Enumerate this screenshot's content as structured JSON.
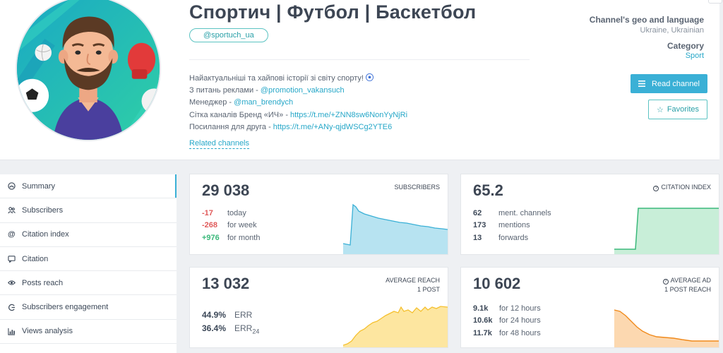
{
  "channel": {
    "title": "Спортич | Футбол | Баскетбол",
    "handle": "@sportuch_ua",
    "description": [
      {
        "text": "Найактуальніші та хайпові історії зі світу спорту! ",
        "link": "",
        "icon": "soccer-ball-icon"
      },
      {
        "text": "З питань реклами - ",
        "link": "@promotion_vakansuch"
      },
      {
        "text": "Менеджер - ",
        "link": "@man_brendych"
      },
      {
        "text": "Сітка каналів Бренд «ИЧ» - ",
        "link": "https://t.me/+ZNN8sw6NonYyNjRi"
      },
      {
        "text": "Посилання для друга - ",
        "link": "https://t.me/+ANy-qjdWSCg2YTE6"
      }
    ],
    "related_label": "Related channels",
    "geo_label": "Channel's geo and language",
    "geo_value": "Ukraine, Ukrainian",
    "category_label": "Category",
    "category_value": "Sport",
    "read_button": "Read channel",
    "favorites_button": "Favorites"
  },
  "sidebar": {
    "items": [
      {
        "label": "Summary",
        "icon": "summary-icon",
        "active": true
      },
      {
        "label": "Subscribers",
        "icon": "users-icon"
      },
      {
        "label": "Citation index",
        "icon": "at-icon"
      },
      {
        "label": "Citation",
        "icon": "quote-icon"
      },
      {
        "label": "Posts reach",
        "icon": "eye-icon"
      },
      {
        "label": "Subscribers engagement",
        "icon": "engagement-icon"
      },
      {
        "label": "Views analysis",
        "icon": "bar-chart-icon"
      }
    ]
  },
  "cards": {
    "subscribers": {
      "value": "29 038",
      "label": "SUBSCRIBERS",
      "rows": [
        {
          "value": "-17",
          "text": "today",
          "tone": "neg"
        },
        {
          "value": "-268",
          "text": "for week",
          "tone": "neg"
        },
        {
          "value": "+976",
          "text": "for month",
          "tone": "pos"
        }
      ],
      "color": "#3ab0d6"
    },
    "citation": {
      "value": "65.2",
      "label": "CITATION INDEX",
      "rows": [
        {
          "value": "62",
          "text": "ment. channels"
        },
        {
          "value": "173",
          "text": "mentions"
        },
        {
          "value": "13",
          "text": "forwards"
        }
      ],
      "color": "#3ab87a"
    },
    "reach": {
      "value": "13 032",
      "label_line1": "AVERAGE REACH",
      "label_line2": "1 POST",
      "err_value": "44.9%",
      "err_text": "ERR",
      "err24_value": "36.4%",
      "err24_text": "ERR",
      "err24_sub": "24",
      "color": "#f5c02e"
    },
    "ad_reach": {
      "value": "10 602",
      "label_line1": "AVERAGE AD",
      "label_line2": "1 POST REACH",
      "rows": [
        {
          "value": "9.1k",
          "text": "for 12 hours"
        },
        {
          "value": "10.6k",
          "text": "for 24 hours"
        },
        {
          "value": "11.7k",
          "text": "for 48 hours"
        }
      ],
      "color": "#f08a1c"
    }
  }
}
